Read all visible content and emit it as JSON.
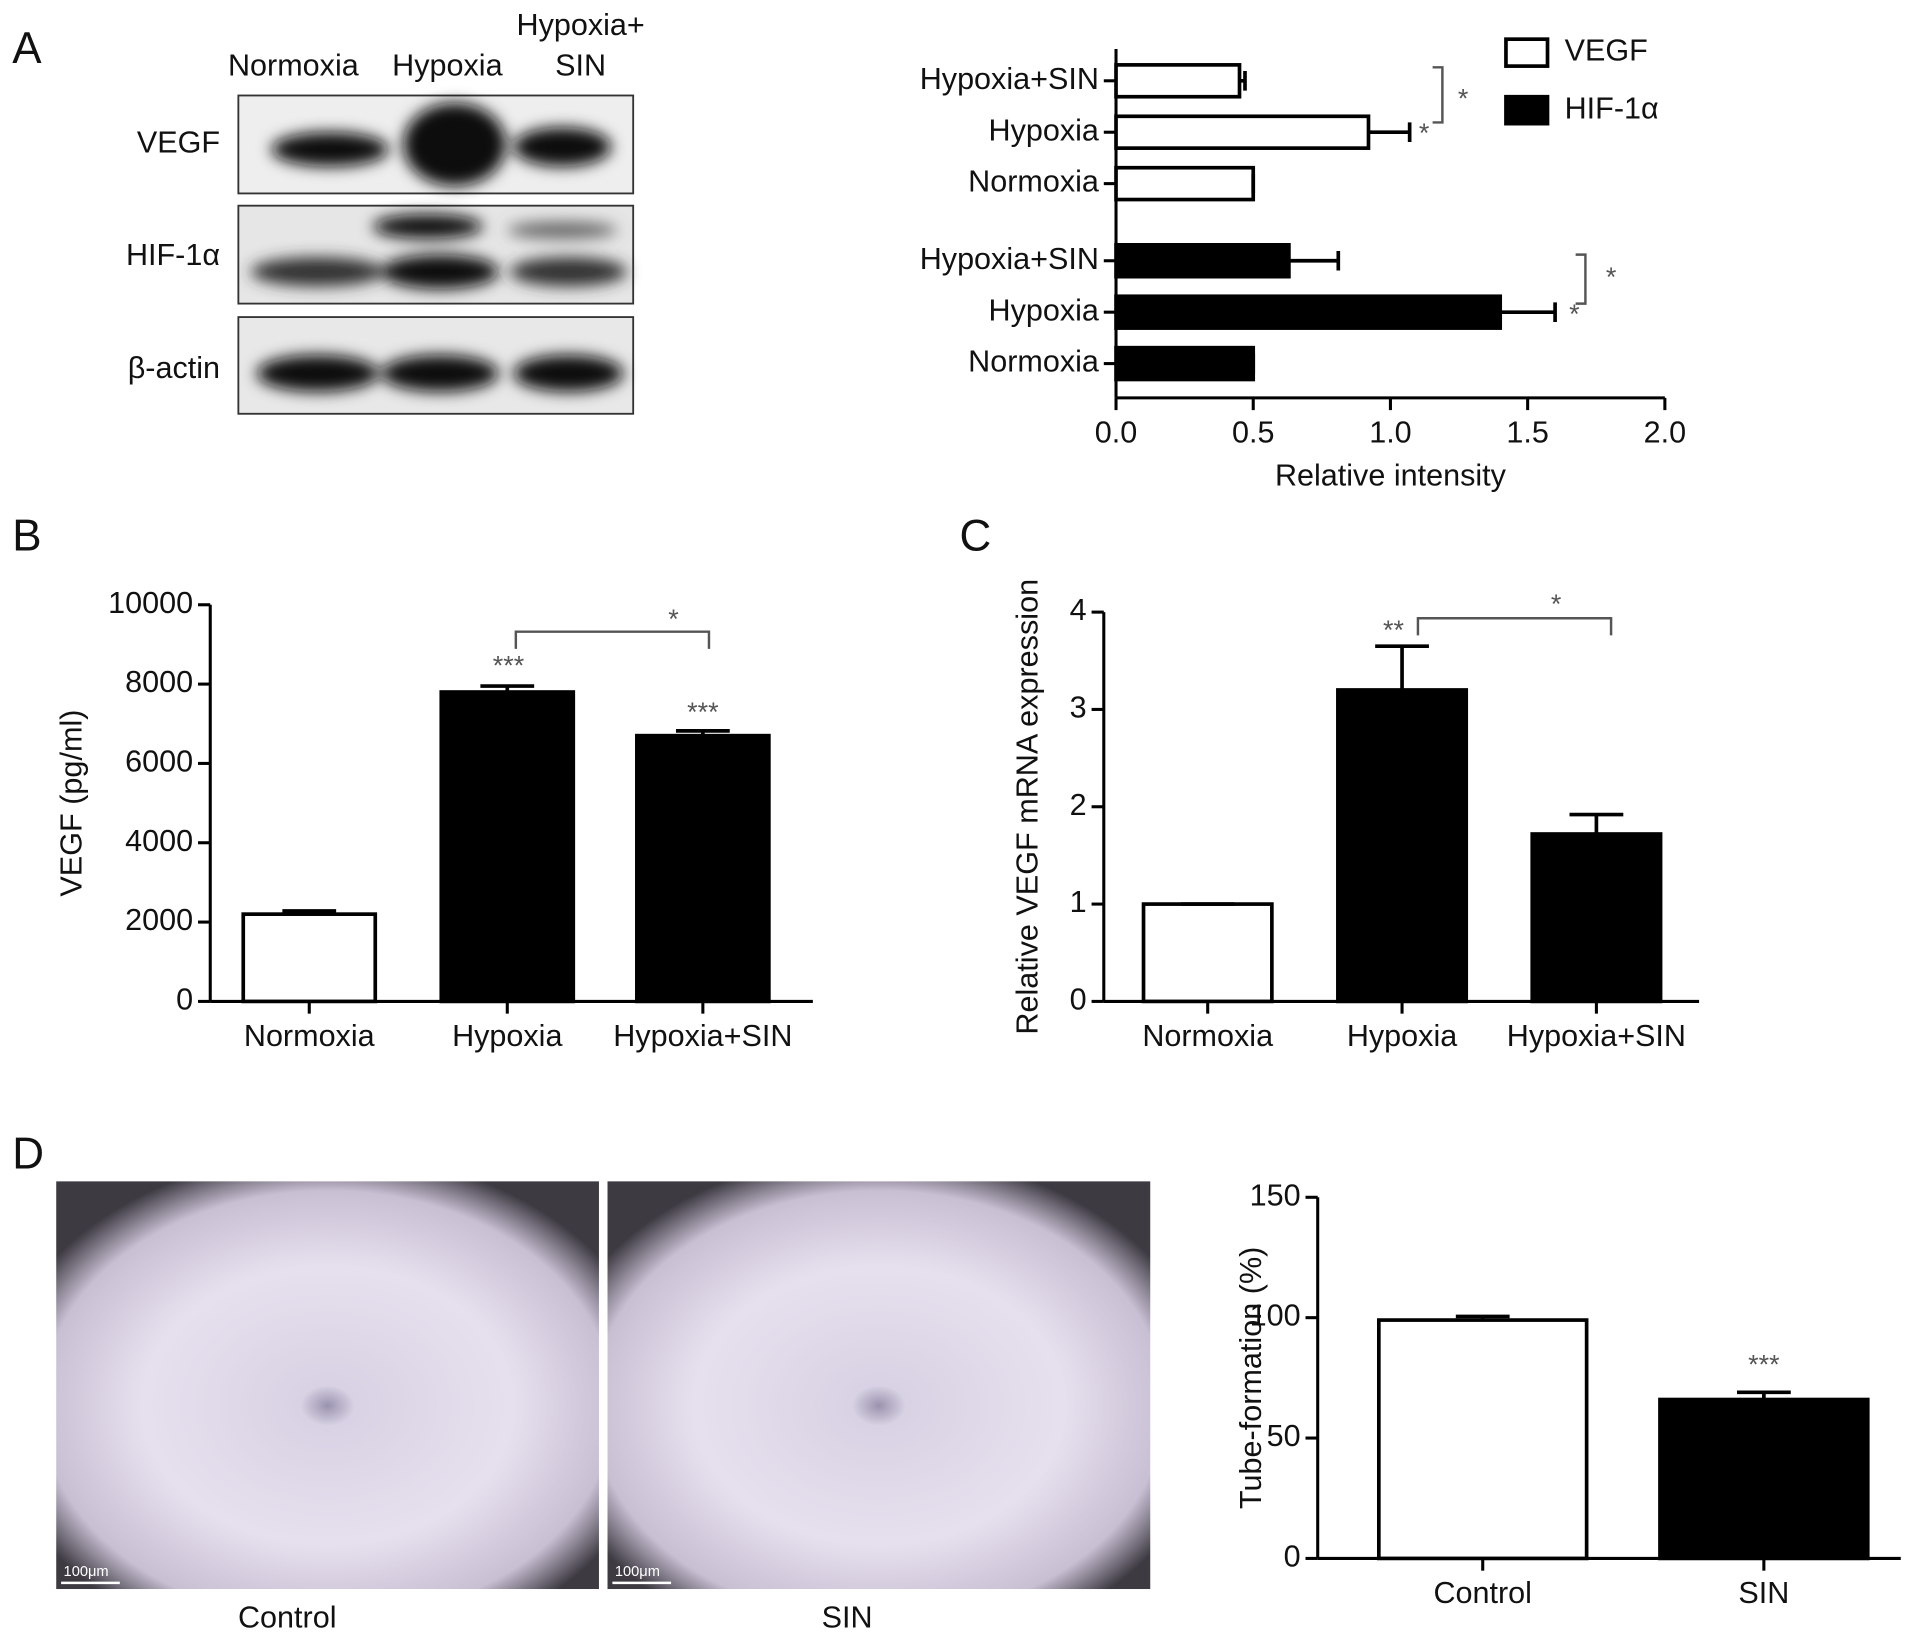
{
  "panel_labels": [
    "A",
    "B",
    "C",
    "D"
  ],
  "blot": {
    "lane_labels": [
      "Normoxia",
      "Hypoxia",
      "Hypoxia+",
      "SIN"
    ],
    "rows": [
      "VEGF",
      "HIF-1α",
      "β-actin"
    ]
  },
  "microscopy": {
    "images": [
      "Control",
      "SIN"
    ],
    "scale_bar": "100μm"
  },
  "chart_data": [
    {
      "type": "hbar",
      "xlabel": "Relative intensity",
      "categories": [
        "Hypoxia+SIN",
        "Hypoxia",
        "Normoxia"
      ],
      "series": [
        {
          "name": "VEGF",
          "color": "#ffffff",
          "values": [
            0.45,
            0.92,
            0.5
          ],
          "errors": [
            0.02,
            0.15,
            0
          ]
        },
        {
          "name": "HIF-1α",
          "color": "#000000",
          "values": [
            0.63,
            1.4,
            0.5
          ],
          "errors": [
            0.18,
            0.2,
            0
          ]
        }
      ],
      "xlim": [
        0,
        2
      ],
      "xticks": [
        {
          "value": 0,
          "label": "0.0"
        },
        {
          "value": 0.5,
          "label": "0.5"
        },
        {
          "value": 1,
          "label": "1.0"
        },
        {
          "value": 1.5,
          "label": "1.5"
        },
        {
          "value": 2,
          "label": "2.0"
        }
      ],
      "legend": "top-right",
      "annotations": [
        "*",
        "*",
        "*",
        "*"
      ]
    },
    {
      "type": "bar",
      "ylabel": "VEGF (pg/ml)",
      "categories": [
        "Normoxia",
        "Hypoxia",
        "Hypoxia+SIN"
      ],
      "values": [
        2200,
        7800,
        6700
      ],
      "errors": [
        80,
        150,
        120
      ],
      "colors": [
        "#ffffff",
        "#000000",
        "#000000"
      ],
      "ylim": [
        0,
        10000
      ],
      "yticks": [
        0,
        2000,
        4000,
        6000,
        8000,
        10000
      ],
      "annotations": [
        "***",
        "***",
        "*"
      ]
    },
    {
      "type": "bar",
      "ylabel": "Relative VEGF mRNA expression",
      "categories": [
        "Normoxia",
        "Hypoxia",
        "Hypoxia+SIN"
      ],
      "values": [
        1.0,
        3.2,
        1.72
      ],
      "errors": [
        0,
        0.45,
        0.2
      ],
      "colors": [
        "#ffffff",
        "#000000",
        "#000000"
      ],
      "ylim": [
        0,
        4
      ],
      "yticks": [
        0,
        1,
        2,
        3,
        4
      ],
      "annotations": [
        "**",
        "*"
      ]
    },
    {
      "type": "bar",
      "ylabel": "Tube-formation (%)",
      "categories": [
        "Control",
        "SIN"
      ],
      "values": [
        99,
        66
      ],
      "errors": [
        1.5,
        3
      ],
      "colors": [
        "#ffffff",
        "#000000"
      ],
      "ylim": [
        0,
        150
      ],
      "yticks": [
        0,
        50,
        100,
        150
      ],
      "annotations": [
        "***"
      ]
    }
  ]
}
